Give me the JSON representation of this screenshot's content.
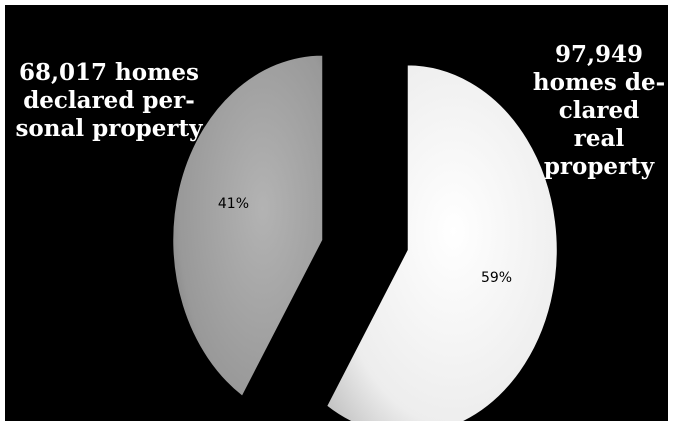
{
  "chart_data": {
    "type": "pie",
    "exploded": true,
    "style": "3d-shaded",
    "background": "#000000",
    "slices": [
      {
        "label": "97,949 homes declared real property",
        "callout": "97,949\nhomes de-\nclared  real\nproperty",
        "value": 97949,
        "percent_label": "59%",
        "color": "#f2f2f2"
      },
      {
        "label": "68,017 homes declared personal property",
        "callout": "68,017 homes\ndeclared per-\nsonal property",
        "value": 68017,
        "percent_label": "41%",
        "color": "#9a9a9a"
      }
    ]
  }
}
